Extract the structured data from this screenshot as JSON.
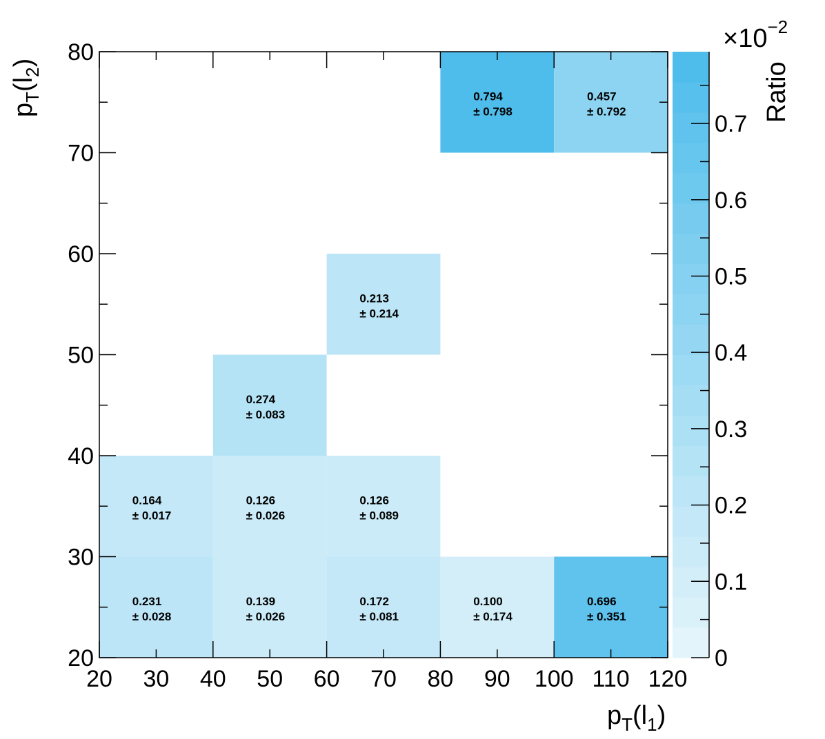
{
  "chart_data": {
    "type": "heatmap",
    "x_edges": [
      20,
      40,
      60,
      80,
      100,
      120
    ],
    "y_edges": [
      20,
      30,
      40,
      50,
      60,
      70,
      80
    ],
    "xlim": [
      20,
      120
    ],
    "ylim": [
      20,
      80
    ],
    "x_ticks": [
      "20",
      "30",
      "40",
      "50",
      "60",
      "70",
      "80",
      "90",
      "100",
      "110",
      "120"
    ],
    "y_ticks": [
      "20",
      "30",
      "40",
      "50",
      "60",
      "70",
      "80"
    ],
    "xlabel": {
      "base": "p",
      "sub": "T",
      "open": "(l",
      "sub2": "1",
      "close": ")"
    },
    "ylabel": {
      "base": "p",
      "sub": "T",
      "open": "(l",
      "sub2": "2",
      "close": ")"
    },
    "zlabel": "Ratio",
    "z_exponent": {
      "prefix": "×10",
      "exp": "−2"
    },
    "z_ticks": [
      "0",
      "0.1",
      "0.2",
      "0.3",
      "0.4",
      "0.5",
      "0.6",
      "0.7"
    ],
    "zlim": [
      0,
      0.794
    ],
    "palette": [
      "#e3f4fb",
      "#4fbdeb"
    ],
    "cells": [
      {
        "x": [
          20,
          40
        ],
        "y": [
          20,
          30
        ],
        "value": "0.231",
        "error": "± 0.028"
      },
      {
        "x": [
          40,
          60
        ],
        "y": [
          20,
          30
        ],
        "value": "0.139",
        "error": "± 0.026"
      },
      {
        "x": [
          60,
          80
        ],
        "y": [
          20,
          30
        ],
        "value": "0.172",
        "error": "± 0.081"
      },
      {
        "x": [
          80,
          100
        ],
        "y": [
          20,
          30
        ],
        "value": "0.100",
        "error": "± 0.174"
      },
      {
        "x": [
          100,
          120
        ],
        "y": [
          20,
          30
        ],
        "value": "0.696",
        "error": "± 0.351"
      },
      {
        "x": [
          20,
          40
        ],
        "y": [
          30,
          40
        ],
        "value": "0.164",
        "error": "± 0.017"
      },
      {
        "x": [
          40,
          60
        ],
        "y": [
          30,
          40
        ],
        "value": "0.126",
        "error": "± 0.026"
      },
      {
        "x": [
          60,
          80
        ],
        "y": [
          30,
          40
        ],
        "value": "0.126",
        "error": "± 0.089"
      },
      {
        "x": [
          40,
          60
        ],
        "y": [
          40,
          50
        ],
        "value": "0.274",
        "error": "± 0.083"
      },
      {
        "x": [
          60,
          80
        ],
        "y": [
          50,
          60
        ],
        "value": "0.213",
        "error": "± 0.214"
      },
      {
        "x": [
          80,
          100
        ],
        "y": [
          70,
          80
        ],
        "value": "0.794",
        "error": "± 0.798"
      },
      {
        "x": [
          100,
          120
        ],
        "y": [
          70,
          80
        ],
        "value": "0.457",
        "error": "± 0.792"
      }
    ]
  }
}
